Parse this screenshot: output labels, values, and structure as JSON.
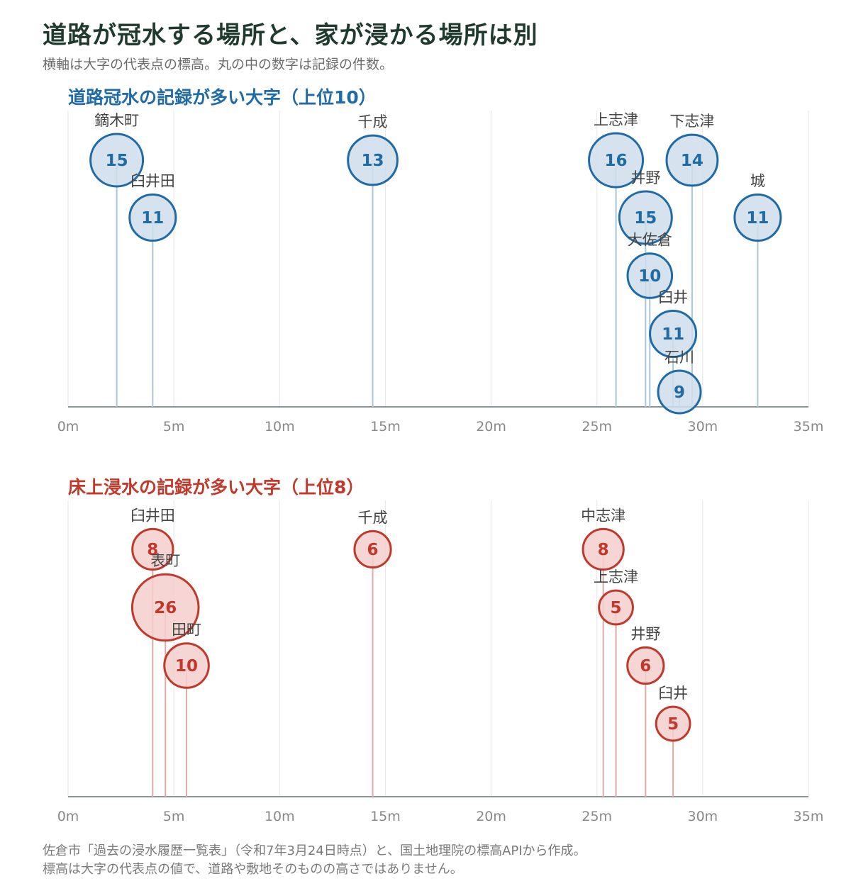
{
  "title": "道路が冠水する場所と、家が浸かる場所は別",
  "subtitle": "横軸は大字の代表点の標高。丸の中の数字は記録の件数。",
  "footnotes": [
    "佐倉市「過去の浸水履歴一覧表」（令和7年3月24日時点）と、国土地理院の標高APIから作成。",
    "標高は大字の代表点の値で、道路や敷地そのものの高さではありません。"
  ],
  "colors": {
    "road": "#1f6ba5",
    "road_fill": "#cfdeec",
    "road_stem": "#a8c6de",
    "house": "#c0392b",
    "house_fill": "#f4cfcc",
    "house_stem": "#e2aaa5",
    "grid": "#e6e6e6",
    "axis": "#8a9599",
    "tick": "#888888",
    "label": "#444444"
  },
  "chart_data": [
    {
      "type": "scatter",
      "title": "道路冠水の記録が多い大字（上位10）",
      "xlabel": "",
      "ylabel": "",
      "xlim": [
        0,
        35
      ],
      "x_ticks": [
        "0m",
        "5m",
        "10m",
        "15m",
        "20m",
        "25m",
        "30m",
        "35m"
      ],
      "grid": true,
      "points": [
        {
          "name": "鏑木町",
          "elevation": 2.3,
          "count": 15
        },
        {
          "name": "臼井田",
          "elevation": 4.0,
          "count": 11
        },
        {
          "name": "千成",
          "elevation": 14.4,
          "count": 13
        },
        {
          "name": "上志津",
          "elevation": 25.9,
          "count": 16
        },
        {
          "name": "下志津",
          "elevation": 29.5,
          "count": 14
        },
        {
          "name": "井野",
          "elevation": 27.3,
          "count": 15
        },
        {
          "name": "城",
          "elevation": 32.6,
          "count": 11
        },
        {
          "name": "大佐倉",
          "elevation": 27.5,
          "count": 10
        },
        {
          "name": "臼井",
          "elevation": 28.6,
          "count": 11
        },
        {
          "name": "石川",
          "elevation": 28.9,
          "count": 9
        }
      ]
    },
    {
      "type": "scatter",
      "title": "床上浸水の記録が多い大字（上位8）",
      "xlabel": "",
      "ylabel": "",
      "xlim": [
        0,
        35
      ],
      "x_ticks": [
        "0m",
        "5m",
        "10m",
        "15m",
        "20m",
        "25m",
        "30m",
        "35m"
      ],
      "grid": true,
      "points": [
        {
          "name": "臼井田",
          "elevation": 4.0,
          "count": 8
        },
        {
          "name": "表町",
          "elevation": 4.6,
          "count": 26
        },
        {
          "name": "田町",
          "elevation": 5.6,
          "count": 10
        },
        {
          "name": "千成",
          "elevation": 14.4,
          "count": 6
        },
        {
          "name": "中志津",
          "elevation": 25.3,
          "count": 8
        },
        {
          "name": "上志津",
          "elevation": 25.9,
          "count": 5
        },
        {
          "name": "井野",
          "elevation": 27.3,
          "count": 6
        },
        {
          "name": "臼井",
          "elevation": 28.6,
          "count": 5
        }
      ]
    }
  ]
}
